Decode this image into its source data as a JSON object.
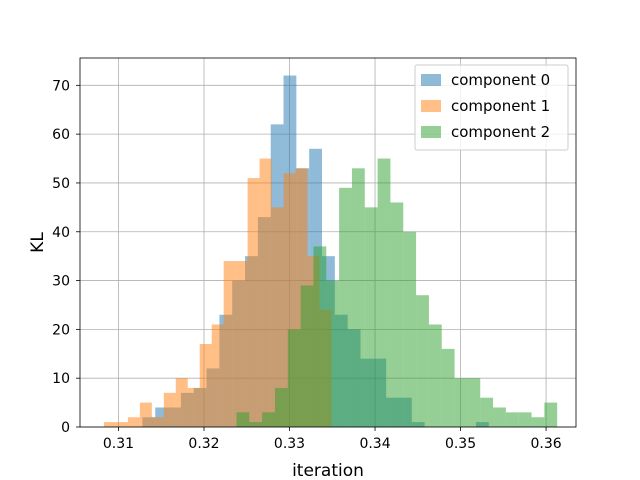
{
  "chart_data": {
    "type": "bar",
    "histogram": true,
    "xlabel": "iteration",
    "ylabel": "KL",
    "xlim": [
      0.3055,
      0.3635
    ],
    "ylim": [
      0,
      75.6
    ],
    "xticks": [
      0.31,
      0.32,
      0.33,
      0.34,
      0.35,
      0.36
    ],
    "xtick_labels": [
      "0.31",
      "0.32",
      "0.33",
      "0.34",
      "0.35",
      "0.36"
    ],
    "yticks": [
      0,
      10,
      20,
      30,
      40,
      50,
      60,
      70
    ],
    "ytick_labels": [
      "0",
      "10",
      "20",
      "30",
      "40",
      "50",
      "60",
      "70"
    ],
    "grid": true,
    "legend_position": "top-right",
    "series": [
      {
        "name": "component 0",
        "color": "#1f77b4",
        "opacity": 0.5,
        "bin_edges": [
          0.3128,
          0.3143,
          0.3158,
          0.3173,
          0.3188,
          0.3203,
          0.3218,
          0.3233,
          0.3248,
          0.3263,
          0.3278,
          0.3293,
          0.3308,
          0.3323,
          0.3338,
          0.3353,
          0.3368,
          0.3383,
          0.3398,
          0.3413,
          0.3428,
          0.3443,
          0.3458,
          0.3473,
          0.3488,
          0.3503,
          0.3518,
          0.3533
        ],
        "counts": [
          2,
          4,
          4,
          7,
          8,
          12,
          23,
          30,
          35,
          43,
          62,
          72,
          53,
          57,
          35,
          23,
          20,
          14,
          14,
          6,
          6,
          1,
          0,
          0,
          0,
          0,
          1
        ]
      },
      {
        "name": "component 1",
        "color": "#ff7f0e",
        "opacity": 0.5,
        "bin_edges": [
          0.3083,
          0.3097,
          0.3111,
          0.3125,
          0.3139,
          0.3153,
          0.3167,
          0.3181,
          0.3195,
          0.3209,
          0.3223,
          0.3237,
          0.3251,
          0.3265,
          0.3279,
          0.3293,
          0.3307,
          0.3321,
          0.3335,
          0.3349
        ],
        "counts": [
          1,
          1,
          2,
          5,
          2,
          7,
          10,
          8,
          17,
          21,
          34,
          34,
          51,
          55,
          45,
          52,
          53,
          35,
          24
        ]
      },
      {
        "name": "component 2",
        "color": "#2ca02c",
        "opacity": 0.5,
        "bin_edges": [
          0.3238,
          0.3253,
          0.3268,
          0.3283,
          0.3298,
          0.3313,
          0.3328,
          0.3343,
          0.3358,
          0.3373,
          0.3388,
          0.3403,
          0.3418,
          0.3433,
          0.3448,
          0.3463,
          0.3478,
          0.3493,
          0.3508,
          0.3523,
          0.3538,
          0.3553,
          0.3568,
          0.3583,
          0.3598,
          0.3613
        ],
        "counts": [
          3,
          1,
          3,
          8,
          20,
          29,
          37,
          30,
          49,
          53,
          45,
          55,
          46,
          40,
          27,
          21,
          16,
          10,
          10,
          6,
          4,
          3,
          3,
          2,
          5
        ]
      }
    ]
  }
}
